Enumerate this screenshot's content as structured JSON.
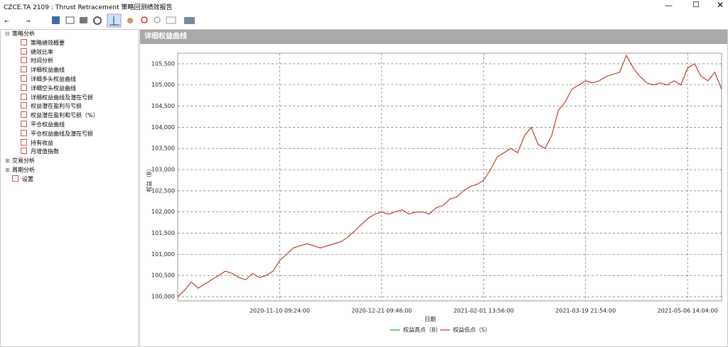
{
  "window": {
    "title": "CZCE.TA 2109 : Thrust Retracement 策略回测绩效报告"
  },
  "tree": [
    {
      "label": "策略分析",
      "children": [
        "策略绩效概要",
        "绩效比率",
        "时间分析",
        "详细权益曲线",
        "详细多头权益曲线",
        "详细空头权益曲线",
        "详细权益曲线及潜在亏损",
        "权益潜在盈利与亏损",
        "权益潜在盈利和亏损（%）",
        "平仓权益曲线",
        "平仓权益曲线及潜在亏损",
        "持有收益",
        "月增值指数"
      ]
    },
    {
      "label": "交易分析"
    },
    {
      "label": "周期分析"
    },
    {
      "label": "设置"
    }
  ],
  "panel": {
    "title": "详细权益曲线"
  },
  "chart_data": {
    "type": "line",
    "ylabel": "权益（B）",
    "xlabel": "日期",
    "grid": true,
    "categories": [
      null,
      null,
      null,
      null,
      null,
      null,
      null,
      null,
      null,
      null,
      null,
      null,
      null,
      null,
      null,
      "2020-11-10 09:24:00",
      null,
      null,
      null,
      null,
      null,
      null,
      null,
      null,
      null,
      null,
      null,
      null,
      null,
      null,
      "2020-12-21 09:46:00",
      null,
      null,
      null,
      null,
      null,
      null,
      null,
      null,
      null,
      null,
      null,
      null,
      null,
      null,
      "2021-02-01 13:56:00",
      null,
      null,
      null,
      null,
      null,
      null,
      null,
      null,
      null,
      null,
      null,
      null,
      null,
      null,
      "2021-03-19 21:54:00",
      null,
      null,
      null,
      null,
      null,
      null,
      null,
      null,
      null,
      null,
      null,
      null,
      null,
      null,
      "2021-05-06 14:04:00",
      null,
      null,
      null,
      null,
      null
    ],
    "series": [
      {
        "name": "权益高点（B）",
        "color": "#2ca02c",
        "values": [
          100000,
          100150,
          100350,
          100200,
          100300,
          100400,
          100500,
          100600,
          100550,
          100450,
          100400,
          100550,
          100450,
          100500,
          100600,
          100850,
          101000,
          101150,
          101200,
          101250,
          101200,
          101150,
          101200,
          101250,
          101300,
          101400,
          101550,
          101700,
          101850,
          101950,
          102000,
          101950,
          102000,
          102050,
          101950,
          102000,
          102000,
          101950,
          102100,
          102150,
          102300,
          102350,
          102500,
          102600,
          102650,
          102750,
          103000,
          103300,
          103400,
          103500,
          103400,
          103800,
          104000,
          103600,
          103500,
          103800,
          104400,
          104600,
          104900,
          105000,
          105100,
          105050,
          105100,
          105200,
          105250,
          105300,
          105700,
          105400,
          105200,
          105050,
          105000,
          105050,
          105000,
          105100,
          105000,
          105400,
          105500,
          105200,
          105100,
          105300,
          104900
        ]
      },
      {
        "name": "权益低点（S）",
        "color": "#d62728",
        "values": [
          100000,
          100150,
          100350,
          100200,
          100300,
          100400,
          100500,
          100600,
          100550,
          100450,
          100400,
          100550,
          100450,
          100500,
          100600,
          100850,
          101000,
          101150,
          101200,
          101250,
          101200,
          101150,
          101200,
          101250,
          101300,
          101400,
          101550,
          101700,
          101850,
          101950,
          102000,
          101950,
          102000,
          102050,
          101950,
          102000,
          102000,
          101950,
          102100,
          102150,
          102300,
          102350,
          102500,
          102600,
          102650,
          102750,
          103000,
          103300,
          103400,
          103500,
          103400,
          103800,
          104000,
          103600,
          103500,
          103800,
          104400,
          104600,
          104900,
          105000,
          105100,
          105050,
          105100,
          105200,
          105250,
          105300,
          105700,
          105400,
          105200,
          105050,
          105000,
          105050,
          105000,
          105100,
          105000,
          105400,
          105500,
          105200,
          105100,
          105300,
          104900
        ]
      }
    ],
    "ylim": [
      99900,
      105750
    ],
    "yticks": [
      {
        "value": 100000,
        "label": "100,000"
      },
      {
        "value": 100500,
        "label": "100,500"
      },
      {
        "value": 101000,
        "label": "101,000"
      },
      {
        "value": 101500,
        "label": "101,500"
      },
      {
        "value": 102000,
        "label": "102,000"
      },
      {
        "value": 102500,
        "label": "102,500"
      },
      {
        "value": 103000,
        "label": "103,000"
      },
      {
        "value": 103500,
        "label": "103,500"
      },
      {
        "value": 104000,
        "label": "104,000"
      },
      {
        "value": 104500,
        "label": "104,500"
      },
      {
        "value": 105000,
        "label": "105,000"
      },
      {
        "value": 105500,
        "label": "105,500"
      }
    ]
  }
}
